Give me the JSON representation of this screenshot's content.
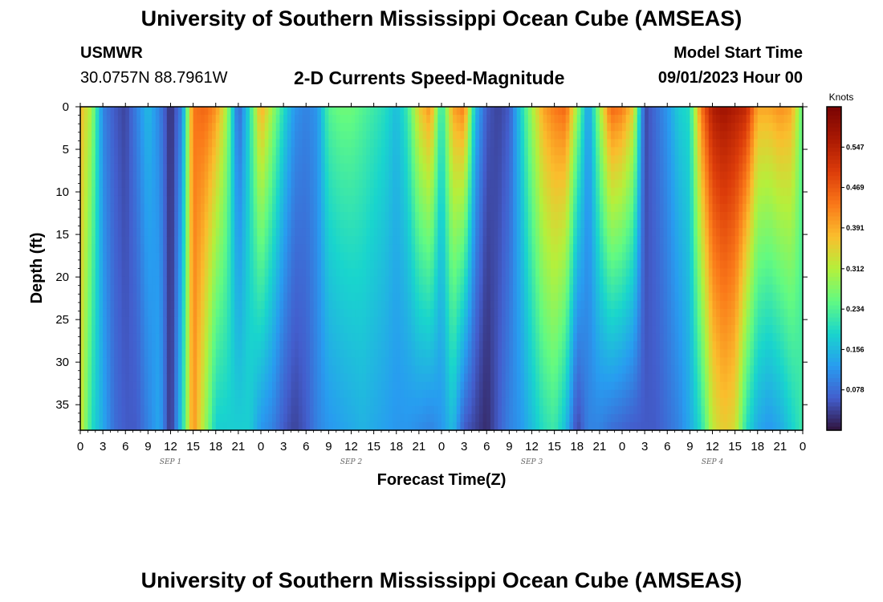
{
  "page": {
    "title": "University of Southern Mississippi Ocean Cube (AMSEAS)",
    "footer_title": "University of Southern Mississippi Ocean Cube (AMSEAS)",
    "station": "USMWR",
    "coords": "30.0757N  88.7961W",
    "subtitle": "2-D Currents Speed-Magnitude",
    "start_label": "Model Start Time",
    "start_value": "09/01/2023 Hour 00"
  },
  "chart_data": {
    "type": "heatmap",
    "title": "2-D Currents Speed-Magnitude",
    "xlabel": "Forecast Time(Z)",
    "ylabel": "Depth (ft)",
    "x_range_hours": [
      0,
      96
    ],
    "y_range_ft": [
      0,
      38
    ],
    "y_inverted": true,
    "x_tick_labels": [
      "0",
      "3",
      "6",
      "9",
      "12",
      "15",
      "18",
      "21",
      "0",
      "3",
      "6",
      "9",
      "12",
      "15",
      "18",
      "21",
      "0",
      "3",
      "6",
      "9",
      "12",
      "15",
      "18",
      "21",
      "0",
      "3",
      "6",
      "9",
      "12",
      "15",
      "18",
      "21",
      "0"
    ],
    "y_ticks": [
      0,
      5,
      10,
      15,
      20,
      25,
      30,
      35
    ],
    "day_labels": [
      {
        "label": "SEP 1",
        "hour": 12
      },
      {
        "label": "SEP 2",
        "hour": 36
      },
      {
        "label": "SEP 3",
        "hour": 60
      },
      {
        "label": "SEP 4",
        "hour": 84
      }
    ],
    "colorbar": {
      "unit": "Knots",
      "range": [
        0.0,
        0.625
      ],
      "tick_labels": [
        "0.078",
        "0.156",
        "0.234",
        "0.312",
        "0.391",
        "0.469",
        "0.547"
      ]
    },
    "speed_columns_knots": {
      "hours": [
        0,
        1.5,
        3,
        4.5,
        6,
        7.5,
        9,
        10.5,
        12,
        13.5,
        15,
        16.5,
        18,
        19.5,
        21,
        22.5,
        24,
        25.5,
        27,
        28.5,
        30,
        31.5,
        33,
        34.5,
        36,
        37.5,
        39,
        40.5,
        42,
        43.5,
        45,
        46.5,
        48,
        49.5,
        51,
        52.5,
        54,
        55.5,
        57,
        58.5,
        60,
        61.5,
        63,
        64.5,
        66,
        67.5,
        69,
        70.5,
        72,
        73.5,
        75,
        76.5,
        78,
        79.5,
        81,
        82.5,
        84,
        85.5,
        87,
        88.5,
        90,
        91.5,
        93,
        94.5,
        96
      ],
      "surface": [
        0.38,
        0.3,
        0.1,
        0.06,
        0.04,
        0.1,
        0.16,
        0.1,
        0.02,
        0.1,
        0.44,
        0.46,
        0.42,
        0.3,
        0.06,
        0.2,
        0.4,
        0.3,
        0.2,
        0.12,
        0.1,
        0.12,
        0.24,
        0.26,
        0.26,
        0.24,
        0.22,
        0.2,
        0.16,
        0.22,
        0.36,
        0.42,
        0.2,
        0.4,
        0.44,
        0.16,
        0.06,
        0.04,
        0.06,
        0.18,
        0.3,
        0.4,
        0.44,
        0.46,
        0.3,
        0.12,
        0.3,
        0.46,
        0.44,
        0.36,
        0.04,
        0.08,
        0.12,
        0.18,
        0.2,
        0.44,
        0.56,
        0.58,
        0.56,
        0.54,
        0.4,
        0.4,
        0.42,
        0.4,
        0.24
      ],
      "bottom": [
        0.34,
        0.2,
        0.14,
        0.08,
        0.06,
        0.06,
        0.1,
        0.14,
        0.02,
        0.18,
        0.42,
        0.3,
        0.18,
        0.18,
        0.18,
        0.18,
        0.12,
        0.1,
        0.06,
        0.04,
        0.06,
        0.1,
        0.12,
        0.13,
        0.14,
        0.15,
        0.14,
        0.13,
        0.12,
        0.12,
        0.11,
        0.1,
        0.12,
        0.16,
        0.06,
        0.04,
        0.02,
        0.06,
        0.1,
        0.12,
        0.16,
        0.2,
        0.22,
        0.16,
        0.04,
        0.1,
        0.1,
        0.08,
        0.07,
        0.06,
        0.06,
        0.06,
        0.08,
        0.1,
        0.14,
        0.2,
        0.32,
        0.36,
        0.34,
        0.2,
        0.14,
        0.12,
        0.14,
        0.18,
        0.22
      ]
    }
  }
}
